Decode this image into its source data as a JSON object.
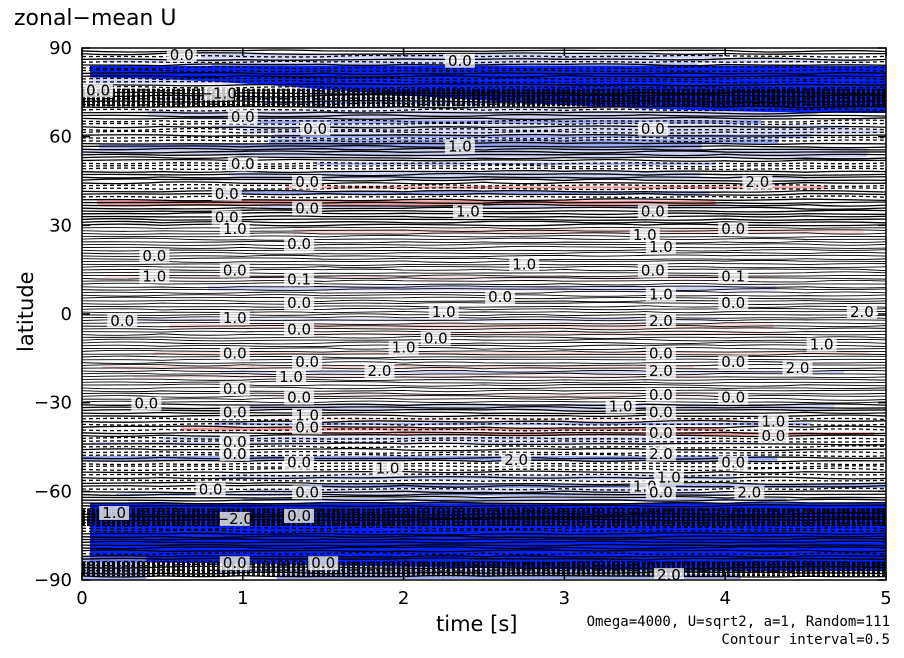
{
  "chart_data": {
    "type": "heatmap",
    "title": "zonal−mean U",
    "xlabel": "time [s]",
    "ylabel": "latitude",
    "xlim": [
      0,
      5
    ],
    "ylim": [
      -90,
      90
    ],
    "x_ticks": [
      "0",
      "1",
      "2",
      "3",
      "4",
      "5"
    ],
    "y_ticks": [
      "90",
      "60",
      "30",
      "0",
      "−30",
      "−60",
      "−90"
    ],
    "x_tick_values": [
      0,
      1,
      2,
      3,
      4,
      5
    ],
    "y_tick_values": [
      90,
      60,
      30,
      0,
      -30,
      -60,
      -90
    ],
    "contour_interval": 0.5,
    "colors": {
      "strong_negative": "#0022ff",
      "negative": "#8c9cf0",
      "weak_negative": "#c9cff6",
      "weak_positive": "#f7d6d6",
      "positive": "#f08a8a",
      "contour": "#000000"
    },
    "contour_labels": [
      {
        "text": "0.0",
        "t": 0.62,
        "lat": 87
      },
      {
        "text": "0.0",
        "t": 2.35,
        "lat": 85
      },
      {
        "text": "0.0",
        "t": 0.1,
        "lat": 75
      },
      {
        "text": "−1.0",
        "t": 0.85,
        "lat": 74
      },
      {
        "text": "0.0",
        "t": 1.0,
        "lat": 66
      },
      {
        "text": "0.0",
        "t": 1.45,
        "lat": 62
      },
      {
        "text": "1.0",
        "t": 2.35,
        "lat": 56
      },
      {
        "text": "0.0",
        "t": 3.55,
        "lat": 62
      },
      {
        "text": "0.0",
        "t": 1.0,
        "lat": 50
      },
      {
        "text": "0.0",
        "t": 1.4,
        "lat": 44
      },
      {
        "text": "2.0",
        "t": 4.2,
        "lat": 44
      },
      {
        "text": "0.0",
        "t": 0.9,
        "lat": 40
      },
      {
        "text": "0.0",
        "t": 1.4,
        "lat": 35
      },
      {
        "text": "1.0",
        "t": 2.4,
        "lat": 34
      },
      {
        "text": "0.0",
        "t": 3.55,
        "lat": 34
      },
      {
        "text": "0.0",
        "t": 0.9,
        "lat": 32
      },
      {
        "text": "1.0",
        "t": 0.95,
        "lat": 28
      },
      {
        "text": "0.0",
        "t": 4.05,
        "lat": 28
      },
      {
        "text": "0.0",
        "t": 1.35,
        "lat": 23
      },
      {
        "text": "1.0",
        "t": 3.5,
        "lat": 26
      },
      {
        "text": "0.0",
        "t": 0.45,
        "lat": 19
      },
      {
        "text": "1.0",
        "t": 3.6,
        "lat": 22
      },
      {
        "text": "0.0",
        "t": 0.95,
        "lat": 14
      },
      {
        "text": "1.0",
        "t": 2.75,
        "lat": 16
      },
      {
        "text": "0.0",
        "t": 3.55,
        "lat": 14
      },
      {
        "text": "1.0",
        "t": 0.45,
        "lat": 12
      },
      {
        "text": "0.1",
        "t": 1.35,
        "lat": 11
      },
      {
        "text": "0.1",
        "t": 4.05,
        "lat": 12
      },
      {
        "text": "0.0",
        "t": 2.6,
        "lat": 5
      },
      {
        "text": "1.0",
        "t": 3.6,
        "lat": 6
      },
      {
        "text": "0.0",
        "t": 1.35,
        "lat": 3
      },
      {
        "text": "0.0",
        "t": 4.05,
        "lat": 3
      },
      {
        "text": "1.0",
        "t": 2.25,
        "lat": 0
      },
      {
        "text": "2.0",
        "t": 4.85,
        "lat": 0
      },
      {
        "text": "0.0",
        "t": 0.25,
        "lat": -3
      },
      {
        "text": "1.0",
        "t": 0.95,
        "lat": -2
      },
      {
        "text": "2.0",
        "t": 3.6,
        "lat": -3
      },
      {
        "text": "0.0",
        "t": 1.35,
        "lat": -6
      },
      {
        "text": "0.0",
        "t": 2.2,
        "lat": -9
      },
      {
        "text": "1.0",
        "t": 2.0,
        "lat": -12
      },
      {
        "text": "1.0",
        "t": 4.6,
        "lat": -11
      },
      {
        "text": "0.0",
        "t": 0.95,
        "lat": -14
      },
      {
        "text": "0.0",
        "t": 1.4,
        "lat": -17
      },
      {
        "text": "0.0",
        "t": 3.6,
        "lat": -14
      },
      {
        "text": "0.0",
        "t": 4.05,
        "lat": -17
      },
      {
        "text": "2.0",
        "t": 1.85,
        "lat": -20
      },
      {
        "text": "2.0",
        "t": 4.45,
        "lat": -19
      },
      {
        "text": "1.0",
        "t": 1.3,
        "lat": -22
      },
      {
        "text": "2.0",
        "t": 3.6,
        "lat": -20
      },
      {
        "text": "0.0",
        "t": 0.95,
        "lat": -26
      },
      {
        "text": "0.0",
        "t": 1.35,
        "lat": -29
      },
      {
        "text": "0.0",
        "t": 3.6,
        "lat": -28
      },
      {
        "text": "0.0",
        "t": 4.05,
        "lat": -29
      },
      {
        "text": "0.0",
        "t": 0.4,
        "lat": -31
      },
      {
        "text": "1.0",
        "t": 3.35,
        "lat": -32
      },
      {
        "text": "0.0",
        "t": 0.95,
        "lat": -34
      },
      {
        "text": "0.0",
        "t": 3.6,
        "lat": -34
      },
      {
        "text": "1.0",
        "t": 1.4,
        "lat": -35
      },
      {
        "text": "1.0",
        "t": 4.3,
        "lat": -37
      },
      {
        "text": "0.0",
        "t": 1.4,
        "lat": -39
      },
      {
        "text": "0.0",
        "t": 3.6,
        "lat": -41
      },
      {
        "text": "0.0",
        "t": 4.3,
        "lat": -42
      },
      {
        "text": "0.0",
        "t": 0.95,
        "lat": -44
      },
      {
        "text": "0.0",
        "t": 0.95,
        "lat": -48
      },
      {
        "text": "2.0",
        "t": 3.6,
        "lat": -48
      },
      {
        "text": "0.0",
        "t": 1.35,
        "lat": -51
      },
      {
        "text": "2.0",
        "t": 2.7,
        "lat": -50
      },
      {
        "text": "0.0",
        "t": 4.05,
        "lat": -51
      },
      {
        "text": "1.0",
        "t": 1.9,
        "lat": -53
      },
      {
        "text": "1.0",
        "t": 3.65,
        "lat": -56
      },
      {
        "text": "0.0",
        "t": 0.8,
        "lat": -60
      },
      {
        "text": "1.0",
        "t": 3.5,
        "lat": -59
      },
      {
        "text": "0.0",
        "t": 1.4,
        "lat": -61
      },
      {
        "text": "0.0",
        "t": 3.6,
        "lat": -61
      },
      {
        "text": "2.0",
        "t": 4.15,
        "lat": -61
      },
      {
        "text": "1.0",
        "t": 0.2,
        "lat": -68
      },
      {
        "text": "−2.0",
        "t": 0.95,
        "lat": -70
      },
      {
        "text": "0.0",
        "t": 1.35,
        "lat": -69
      },
      {
        "text": "0.0",
        "t": 0.95,
        "lat": -85
      },
      {
        "text": "0.0",
        "t": 1.5,
        "lat": -85
      },
      {
        "text": "2.0",
        "t": 3.65,
        "lat": -89
      }
    ]
  },
  "annotations": {
    "params": "Omega=4000, U=sqrt2, a=1, Random=111",
    "contour_note": "Contour interval=0.5"
  }
}
